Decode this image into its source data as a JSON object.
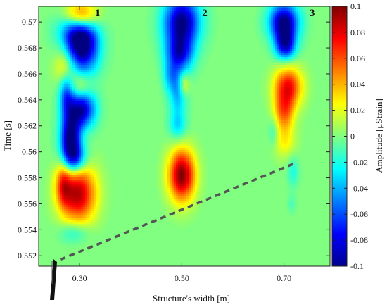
{
  "chart_data": {
    "type": "heatmap",
    "title": "",
    "xlabel": "Structure's width [m]",
    "ylabel": "Time [s]",
    "colorbar_label": "Amplitude [μStrain]",
    "xlim": [
      0.22,
      0.79
    ],
    "ylim": [
      0.5512,
      0.5712
    ],
    "clim": [
      -0.1,
      0.1
    ],
    "x_ticks": [
      0.3,
      0.5,
      0.7
    ],
    "x_tick_labels": [
      "0.30",
      "0.50",
      "0.70"
    ],
    "y_ticks": [
      0.552,
      0.554,
      0.556,
      0.558,
      0.56,
      0.562,
      0.564,
      0.566,
      0.568,
      0.57
    ],
    "y_tick_labels": [
      "0.552",
      "0.554",
      "0.556",
      "0.558",
      "0.56",
      "0.562",
      "0.564",
      "0.566",
      "0.568",
      "0.57"
    ],
    "colorbar_ticks": [
      -0.1,
      -0.08,
      -0.06,
      -0.04,
      -0.02,
      0,
      0.02,
      0.04,
      0.06,
      0.08,
      0.1
    ],
    "colorbar_tick_labels": [
      "-0.1",
      "-0.08",
      "-0.06",
      "-0.04",
      "-0.02",
      "0",
      "0.02",
      "0.04",
      "0.06",
      "0.08",
      "0.1"
    ],
    "colormap": "jet",
    "background_value": 0.0,
    "sensor_labels": [
      {
        "text": "1",
        "x": 0.335,
        "y": 0.5707
      },
      {
        "text": "2",
        "x": 0.545,
        "y": 0.5707
      },
      {
        "text": "3",
        "x": 0.755,
        "y": 0.5707
      }
    ],
    "wave_front_line": {
      "style": "dashed",
      "color": "#555555",
      "from": [
        0.262,
        0.5517
      ],
      "to": [
        0.72,
        0.5591
      ]
    },
    "blobs": [
      {
        "x": 0.302,
        "y": 0.5704,
        "sx": 0.022,
        "sy": 0.0008,
        "value": 0.085
      },
      {
        "x": 0.295,
        "y": 0.5695,
        "sx": 0.025,
        "sy": 0.001,
        "value": -0.06
      },
      {
        "x": 0.305,
        "y": 0.568,
        "sx": 0.022,
        "sy": 0.0014,
        "value": -0.1
      },
      {
        "x": 0.272,
        "y": 0.5665,
        "sx": 0.014,
        "sy": 0.001,
        "value": 0.04
      },
      {
        "x": 0.3,
        "y": 0.565,
        "sx": 0.016,
        "sy": 0.0008,
        "value": 0.03
      },
      {
        "x": 0.305,
        "y": 0.5633,
        "sx": 0.018,
        "sy": 0.001,
        "value": -0.09
      },
      {
        "x": 0.275,
        "y": 0.5645,
        "sx": 0.011,
        "sy": 0.0012,
        "value": -0.06
      },
      {
        "x": 0.282,
        "y": 0.561,
        "sx": 0.014,
        "sy": 0.0014,
        "value": -0.1
      },
      {
        "x": 0.292,
        "y": 0.5595,
        "sx": 0.016,
        "sy": 0.0008,
        "value": -0.06
      },
      {
        "x": 0.297,
        "y": 0.5568,
        "sx": 0.024,
        "sy": 0.0016,
        "value": 0.09
      },
      {
        "x": 0.268,
        "y": 0.5575,
        "sx": 0.011,
        "sy": 0.0012,
        "value": 0.05
      },
      {
        "x": 0.29,
        "y": 0.5538,
        "sx": 0.02,
        "sy": 0.0006,
        "value": -0.025
      },
      {
        "x": 0.5,
        "y": 0.57,
        "sx": 0.024,
        "sy": 0.0014,
        "value": -0.1
      },
      {
        "x": 0.495,
        "y": 0.5675,
        "sx": 0.018,
        "sy": 0.001,
        "value": -0.07
      },
      {
        "x": 0.492,
        "y": 0.5645,
        "sx": 0.012,
        "sy": 0.0012,
        "value": -0.04
      },
      {
        "x": 0.478,
        "y": 0.5658,
        "sx": 0.01,
        "sy": 0.0008,
        "value": -0.03
      },
      {
        "x": 0.505,
        "y": 0.5652,
        "sx": 0.007,
        "sy": 0.0006,
        "value": 0.03
      },
      {
        "x": 0.492,
        "y": 0.562,
        "sx": 0.012,
        "sy": 0.0008,
        "value": -0.03
      },
      {
        "x": 0.5,
        "y": 0.5582,
        "sx": 0.018,
        "sy": 0.0014,
        "value": 0.1
      },
      {
        "x": 0.7,
        "y": 0.57,
        "sx": 0.02,
        "sy": 0.001,
        "value": -0.1
      },
      {
        "x": 0.703,
        "y": 0.5682,
        "sx": 0.014,
        "sy": 0.0008,
        "value": -0.08
      },
      {
        "x": 0.708,
        "y": 0.565,
        "sx": 0.019,
        "sy": 0.0011,
        "value": 0.075
      },
      {
        "x": 0.7,
        "y": 0.563,
        "sx": 0.014,
        "sy": 0.001,
        "value": 0.05
      },
      {
        "x": 0.7,
        "y": 0.5608,
        "sx": 0.016,
        "sy": 0.0009,
        "value": 0.025
      },
      {
        "x": 0.68,
        "y": 0.5615,
        "sx": 0.008,
        "sy": 0.0008,
        "value": -0.02
      },
      {
        "x": 0.718,
        "y": 0.5585,
        "sx": 0.008,
        "sy": 0.0008,
        "value": -0.02
      },
      {
        "x": 0.715,
        "y": 0.556,
        "sx": 0.006,
        "sy": 0.0005,
        "value": -0.01
      }
    ]
  }
}
